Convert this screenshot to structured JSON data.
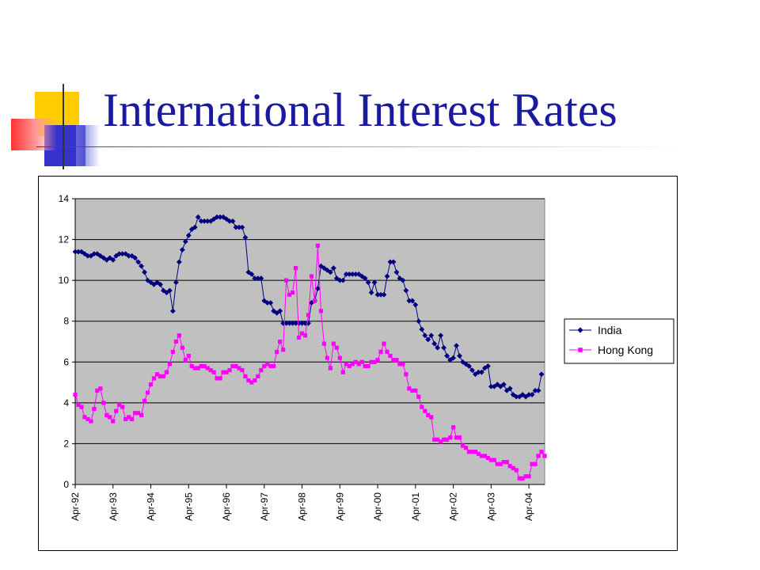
{
  "slide": {
    "title": "International Interest Rates"
  },
  "colors": {
    "title": "#1a1a9e",
    "plot_background": "#c0c0c0",
    "grid": "#000000",
    "india": "#000080",
    "hong_kong": "#ff00ff",
    "deco_yellow": "#ffcc00",
    "deco_blue": "#3333cc",
    "deco_red": "#ff3333"
  },
  "chart_data": {
    "type": "line",
    "title": "",
    "xlabel": "",
    "ylabel": "",
    "ylim": [
      0,
      14
    ],
    "yticks": [
      0,
      2,
      4,
      6,
      8,
      10,
      12,
      14
    ],
    "xticks": [
      "Apr-92",
      "Apr-93",
      "Apr-94",
      "Apr-95",
      "Apr-96",
      "Apr-97",
      "Apr-98",
      "Apr-99",
      "Apr-00",
      "Apr-01",
      "Apr-02",
      "Apr-03",
      "Apr-04"
    ],
    "x_start": "Apr-92",
    "x_unit": "month",
    "grid": true,
    "legend_position": "right",
    "series": [
      {
        "name": "India",
        "marker": "diamond",
        "color": "#000080",
        "values": [
          11.4,
          11.4,
          11.4,
          11.3,
          11.2,
          11.2,
          11.3,
          11.3,
          11.2,
          11.1,
          11.0,
          11.1,
          11.0,
          11.2,
          11.3,
          11.3,
          11.3,
          11.2,
          11.2,
          11.1,
          10.9,
          10.7,
          10.4,
          10.0,
          9.9,
          9.8,
          9.9,
          9.8,
          9.5,
          9.4,
          9.5,
          8.5,
          9.9,
          10.9,
          11.5,
          11.9,
          12.2,
          12.5,
          12.6,
          13.1,
          12.9,
          12.9,
          12.9,
          12.9,
          13.0,
          13.1,
          13.1,
          13.1,
          13.0,
          12.9,
          12.9,
          12.6,
          12.6,
          12.6,
          12.1,
          10.4,
          10.3,
          10.1,
          10.1,
          10.1,
          9.0,
          8.9,
          8.9,
          8.5,
          8.4,
          8.5,
          7.9,
          7.9,
          7.9,
          7.9,
          7.9,
          7.9,
          7.9,
          7.9,
          7.9,
          8.9,
          9.0,
          9.6,
          10.7,
          10.6,
          10.5,
          10.4,
          10.6,
          10.1,
          10.0,
          10.0,
          10.3,
          10.3,
          10.3,
          10.3,
          10.3,
          10.2,
          10.1,
          9.9,
          9.4,
          9.9,
          9.3,
          9.3,
          9.3,
          10.2,
          10.9,
          10.9,
          10.4,
          10.1,
          10.0,
          9.5,
          9.0,
          9.0,
          8.8,
          8.0,
          7.6,
          7.3,
          7.1,
          7.3,
          6.9,
          6.7,
          7.3,
          6.7,
          6.3,
          6.1,
          6.2,
          6.8,
          6.3,
          6.0,
          5.9,
          5.8,
          5.6,
          5.4,
          5.5,
          5.5,
          5.7,
          5.8,
          4.8,
          4.8,
          4.9,
          4.8,
          4.9,
          4.6,
          4.7,
          4.4,
          4.3,
          4.3,
          4.4,
          4.3,
          4.4,
          4.4,
          4.6,
          4.6,
          5.4
        ]
      },
      {
        "name": "Hong Kong",
        "marker": "square",
        "color": "#ff00ff",
        "values": [
          4.4,
          3.9,
          3.8,
          3.3,
          3.2,
          3.1,
          3.7,
          4.6,
          4.7,
          4.0,
          3.4,
          3.3,
          3.1,
          3.6,
          3.9,
          3.8,
          3.2,
          3.3,
          3.2,
          3.5,
          3.5,
          3.4,
          4.1,
          4.5,
          4.9,
          5.2,
          5.4,
          5.3,
          5.3,
          5.5,
          5.9,
          6.5,
          7.0,
          7.3,
          6.7,
          6.1,
          6.3,
          5.8,
          5.7,
          5.7,
          5.8,
          5.8,
          5.7,
          5.6,
          5.5,
          5.2,
          5.2,
          5.5,
          5.5,
          5.6,
          5.8,
          5.8,
          5.7,
          5.6,
          5.3,
          5.1,
          5.0,
          5.1,
          5.3,
          5.6,
          5.8,
          5.9,
          5.8,
          5.8,
          6.5,
          7.0,
          6.6,
          10.0,
          9.3,
          9.4,
          10.6,
          7.2,
          7.4,
          7.3,
          8.3,
          10.2,
          9.0,
          11.7,
          8.5,
          6.9,
          6.2,
          5.7,
          6.9,
          6.7,
          6.2,
          5.5,
          5.9,
          5.8,
          5.9,
          6.0,
          5.9,
          6.0,
          5.8,
          5.8,
          6.0,
          6.0,
          6.1,
          6.5,
          6.9,
          6.5,
          6.3,
          6.1,
          6.1,
          5.9,
          5.9,
          5.4,
          4.7,
          4.6,
          4.6,
          4.3,
          3.8,
          3.6,
          3.4,
          3.3,
          2.2,
          2.2,
          2.1,
          2.2,
          2.2,
          2.3,
          2.8,
          2.3,
          2.3,
          1.9,
          1.8,
          1.6,
          1.6,
          1.6,
          1.5,
          1.4,
          1.4,
          1.3,
          1.2,
          1.2,
          1.0,
          1.0,
          1.1,
          1.1,
          0.9,
          0.8,
          0.7,
          0.3,
          0.3,
          0.4,
          0.4,
          1.0,
          1.0,
          1.4,
          1.6,
          1.4
        ]
      }
    ]
  }
}
